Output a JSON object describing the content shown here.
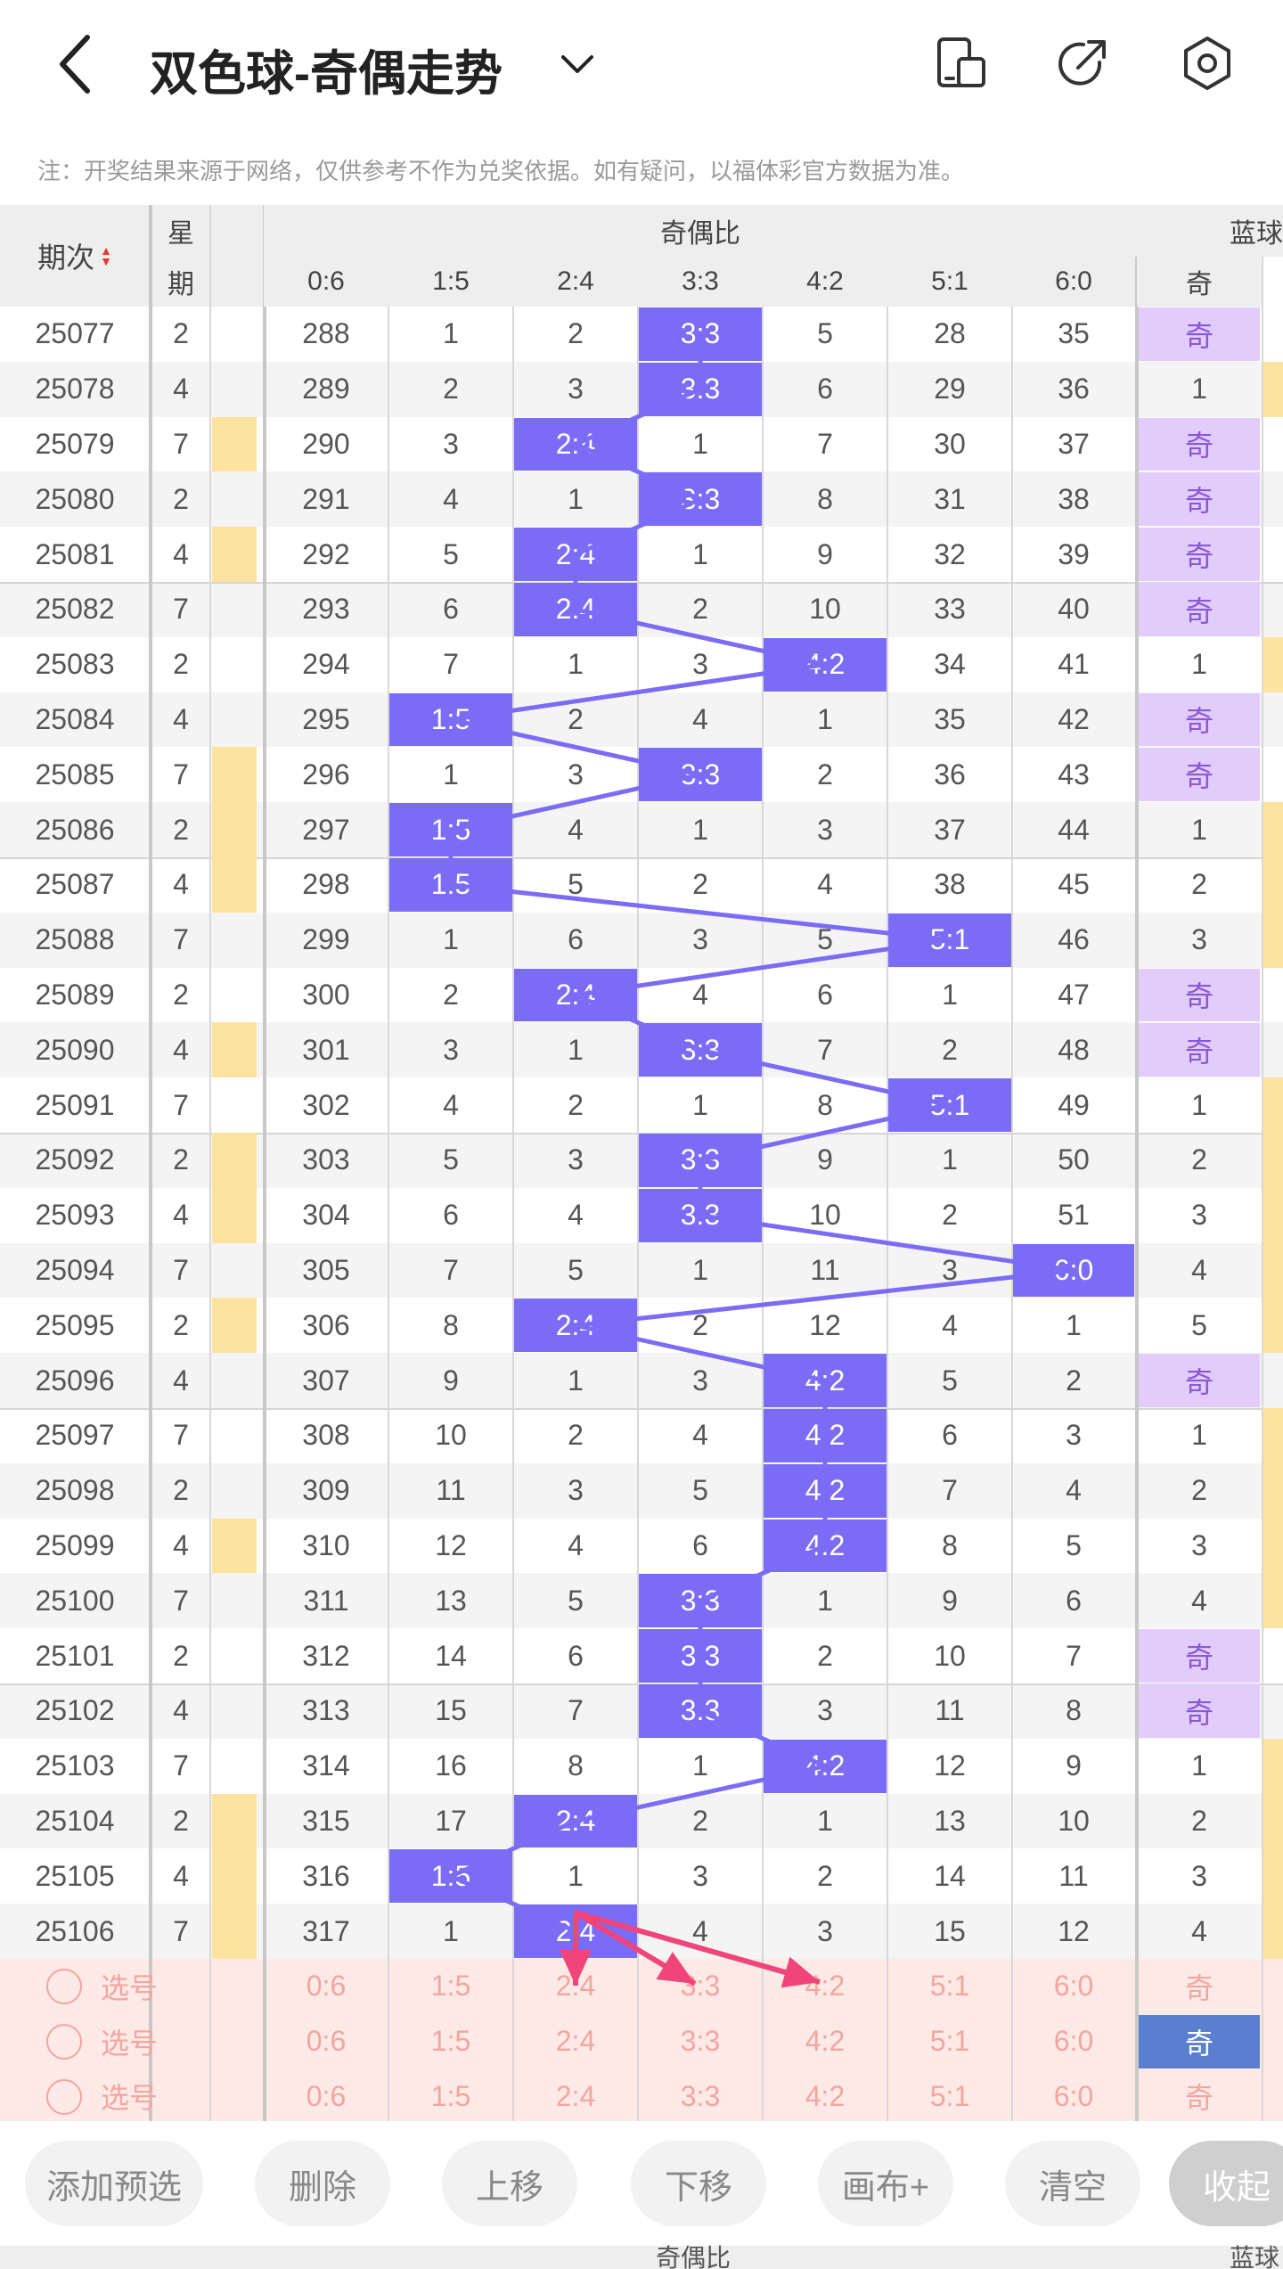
{
  "header": {
    "title": "双色球-奇偶走势",
    "note": "注：开奖结果来源于网络，仅供参考不作为兑奖依据。如有疑问，以福体彩官方数据为准。"
  },
  "table": {
    "col_issue": "期次",
    "col_weekday_1": "星",
    "col_weekday_2": "期",
    "group_ratio": "奇偶比",
    "group_blue": "蓝球",
    "ratio_headers": [
      "0:6",
      "1:5",
      "2:4",
      "3:3",
      "4:2",
      "5:1",
      "6:0"
    ],
    "blue_header": "奇",
    "rows": [
      {
        "issue": "25077",
        "wd": "2",
        "y": false,
        "vals": [
          "288",
          "1",
          "2",
          "3:3",
          "5",
          "28",
          "35"
        ],
        "hit": 3,
        "blue": "奇",
        "br": false
      },
      {
        "issue": "25078",
        "wd": "4",
        "y": false,
        "vals": [
          "289",
          "2",
          "3",
          "3:3",
          "6",
          "29",
          "36"
        ],
        "hit": 3,
        "blue": "1",
        "br": true
      },
      {
        "issue": "25079",
        "wd": "7",
        "y": true,
        "vals": [
          "290",
          "3",
          "2:4",
          "1",
          "7",
          "30",
          "37"
        ],
        "hit": 2,
        "blue": "奇",
        "br": false
      },
      {
        "issue": "25080",
        "wd": "2",
        "y": false,
        "vals": [
          "291",
          "4",
          "1",
          "3:3",
          "8",
          "31",
          "38"
        ],
        "hit": 3,
        "blue": "奇",
        "br": false
      },
      {
        "issue": "25081",
        "wd": "4",
        "y": true,
        "vals": [
          "292",
          "5",
          "2:4",
          "1",
          "9",
          "32",
          "39"
        ],
        "hit": 2,
        "blue": "奇",
        "br": false
      },
      {
        "issue": "25082",
        "wd": "7",
        "y": false,
        "vals": [
          "293",
          "6",
          "2:4",
          "2",
          "10",
          "33",
          "40"
        ],
        "hit": 2,
        "blue": "奇",
        "br": false
      },
      {
        "issue": "25083",
        "wd": "2",
        "y": false,
        "vals": [
          "294",
          "7",
          "1",
          "3",
          "4:2",
          "34",
          "41"
        ],
        "hit": 4,
        "blue": "1",
        "br": true
      },
      {
        "issue": "25084",
        "wd": "4",
        "y": false,
        "vals": [
          "295",
          "1:5",
          "2",
          "4",
          "1",
          "35",
          "42"
        ],
        "hit": 1,
        "blue": "奇",
        "br": false
      },
      {
        "issue": "25085",
        "wd": "7",
        "y": true,
        "vals": [
          "296",
          "1",
          "3",
          "3:3",
          "2",
          "36",
          "43"
        ],
        "hit": 3,
        "blue": "奇",
        "br": false
      },
      {
        "issue": "25086",
        "wd": "2",
        "y": true,
        "vals": [
          "297",
          "1:5",
          "4",
          "1",
          "3",
          "37",
          "44"
        ],
        "hit": 1,
        "blue": "1",
        "br": true
      },
      {
        "issue": "25087",
        "wd": "4",
        "y": true,
        "vals": [
          "298",
          "1:5",
          "5",
          "2",
          "4",
          "38",
          "45"
        ],
        "hit": 1,
        "blue": "2",
        "br": true
      },
      {
        "issue": "25088",
        "wd": "7",
        "y": false,
        "vals": [
          "299",
          "1",
          "6",
          "3",
          "5",
          "5:1",
          "46"
        ],
        "hit": 5,
        "blue": "3",
        "br": true
      },
      {
        "issue": "25089",
        "wd": "2",
        "y": false,
        "vals": [
          "300",
          "2",
          "2:4",
          "4",
          "6",
          "1",
          "47"
        ],
        "hit": 2,
        "blue": "奇",
        "br": false
      },
      {
        "issue": "25090",
        "wd": "4",
        "y": true,
        "vals": [
          "301",
          "3",
          "1",
          "3:3",
          "7",
          "2",
          "48"
        ],
        "hit": 3,
        "blue": "奇",
        "br": false
      },
      {
        "issue": "25091",
        "wd": "7",
        "y": false,
        "vals": [
          "302",
          "4",
          "2",
          "1",
          "8",
          "5:1",
          "49"
        ],
        "hit": 5,
        "blue": "1",
        "br": true
      },
      {
        "issue": "25092",
        "wd": "2",
        "y": true,
        "vals": [
          "303",
          "5",
          "3",
          "3:3",
          "9",
          "1",
          "50"
        ],
        "hit": 3,
        "blue": "2",
        "br": true
      },
      {
        "issue": "25093",
        "wd": "4",
        "y": true,
        "vals": [
          "304",
          "6",
          "4",
          "3:3",
          "10",
          "2",
          "51"
        ],
        "hit": 3,
        "blue": "3",
        "br": true
      },
      {
        "issue": "25094",
        "wd": "7",
        "y": false,
        "vals": [
          "305",
          "7",
          "5",
          "1",
          "11",
          "3",
          "6:0"
        ],
        "hit": 6,
        "blue": "4",
        "br": true
      },
      {
        "issue": "25095",
        "wd": "2",
        "y": true,
        "vals": [
          "306",
          "8",
          "2:4",
          "2",
          "12",
          "4",
          "1"
        ],
        "hit": 2,
        "blue": "5",
        "br": true
      },
      {
        "issue": "25096",
        "wd": "4",
        "y": false,
        "vals": [
          "307",
          "9",
          "1",
          "3",
          "4:2",
          "5",
          "2"
        ],
        "hit": 4,
        "blue": "奇",
        "br": false
      },
      {
        "issue": "25097",
        "wd": "7",
        "y": false,
        "vals": [
          "308",
          "10",
          "2",
          "4",
          "4:2",
          "6",
          "3"
        ],
        "hit": 4,
        "blue": "1",
        "br": true
      },
      {
        "issue": "25098",
        "wd": "2",
        "y": false,
        "vals": [
          "309",
          "11",
          "3",
          "5",
          "4:2",
          "7",
          "4"
        ],
        "hit": 4,
        "blue": "2",
        "br": true
      },
      {
        "issue": "25099",
        "wd": "4",
        "y": true,
        "vals": [
          "310",
          "12",
          "4",
          "6",
          "4:2",
          "8",
          "5"
        ],
        "hit": 4,
        "blue": "3",
        "br": true
      },
      {
        "issue": "25100",
        "wd": "7",
        "y": false,
        "vals": [
          "311",
          "13",
          "5",
          "3:3",
          "1",
          "9",
          "6"
        ],
        "hit": 3,
        "blue": "4",
        "br": true
      },
      {
        "issue": "25101",
        "wd": "2",
        "y": false,
        "vals": [
          "312",
          "14",
          "6",
          "3:3",
          "2",
          "10",
          "7"
        ],
        "hit": 3,
        "blue": "奇",
        "br": false
      },
      {
        "issue": "25102",
        "wd": "4",
        "y": false,
        "vals": [
          "313",
          "15",
          "7",
          "3:3",
          "3",
          "11",
          "8"
        ],
        "hit": 3,
        "blue": "奇",
        "br": false
      },
      {
        "issue": "25103",
        "wd": "7",
        "y": false,
        "vals": [
          "314",
          "16",
          "8",
          "1",
          "4:2",
          "12",
          "9"
        ],
        "hit": 4,
        "blue": "1",
        "br": true
      },
      {
        "issue": "25104",
        "wd": "2",
        "y": true,
        "vals": [
          "315",
          "17",
          "2:4",
          "2",
          "1",
          "13",
          "10"
        ],
        "hit": 2,
        "blue": "2",
        "br": true
      },
      {
        "issue": "25105",
        "wd": "4",
        "y": true,
        "vals": [
          "316",
          "1:5",
          "1",
          "3",
          "2",
          "14",
          "11"
        ],
        "hit": 1,
        "blue": "3",
        "br": true
      },
      {
        "issue": "25106",
        "wd": "7",
        "y": true,
        "vals": [
          "317",
          "1",
          "2:4",
          "4",
          "3",
          "15",
          "12"
        ],
        "hit": 2,
        "blue": "4",
        "br": true
      }
    ],
    "select_rows": [
      {
        "label": "选号",
        "blue": "奇",
        "blue_active": false
      },
      {
        "label": "选号",
        "blue": "奇",
        "blue_active": true
      },
      {
        "label": "选号",
        "blue": "奇",
        "blue_active": false
      }
    ]
  },
  "toolbar": {
    "add": "添加预选",
    "delete": "删除",
    "up": "上移",
    "down": "下移",
    "canvas": "画布+",
    "clear": "清空",
    "collapse": "收起"
  },
  "peek": {
    "group_ratio": "奇偶比",
    "group_blue": "蓝球"
  },
  "colors": {
    "accent": "#7b6cf6",
    "odd": "#e2ccfb",
    "marker": "#fde3a0",
    "select_bg": "#fde9e6",
    "arrow": "#f0457a"
  }
}
